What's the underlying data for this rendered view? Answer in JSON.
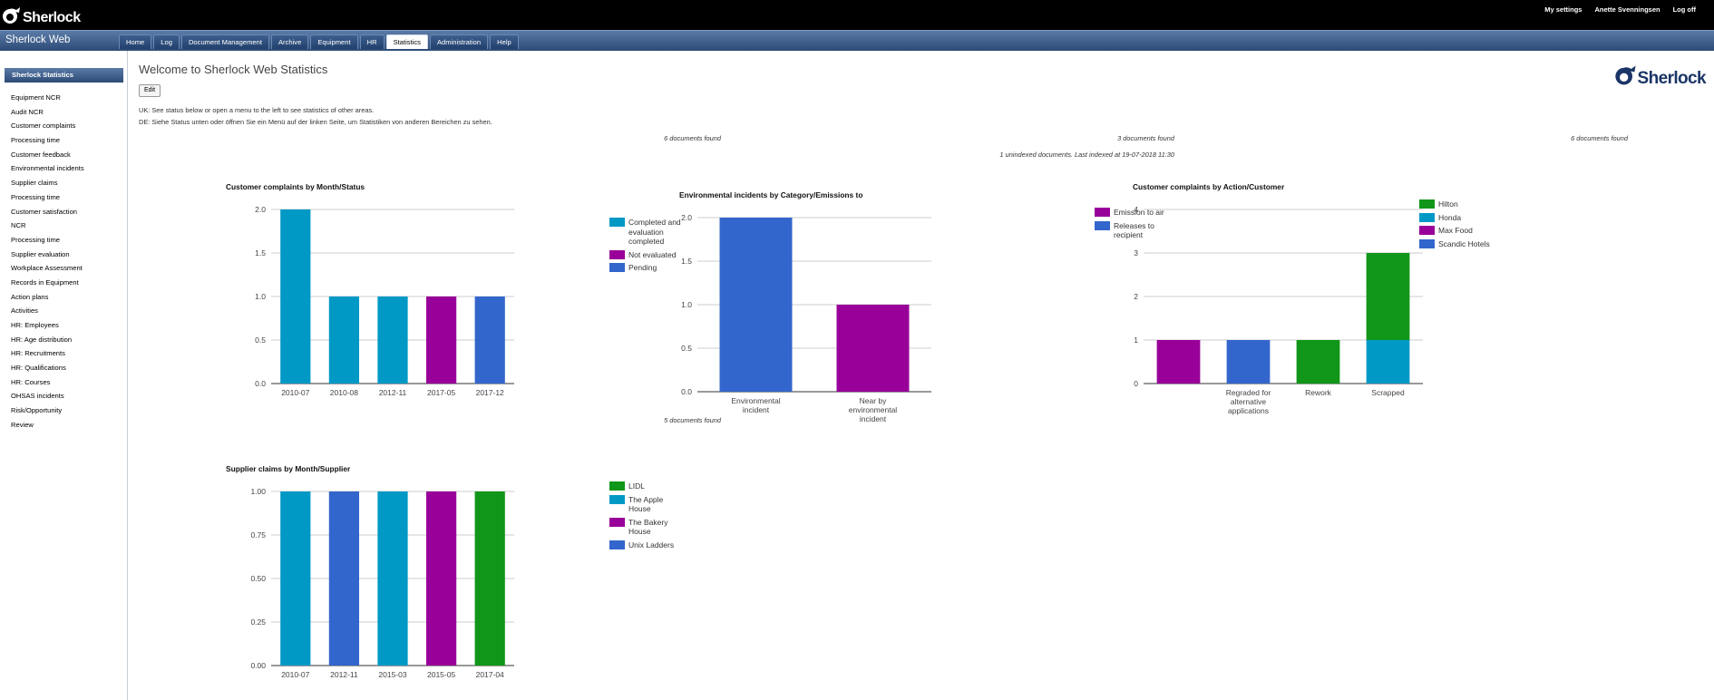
{
  "header": {
    "logo_text": "Sherlock",
    "links": [
      "My settings",
      "Anette Svenningsen",
      "Log off"
    ]
  },
  "nav": {
    "brand": "Sherlock Web",
    "tabs": [
      "Home",
      "Log",
      "Document Management",
      "Archive",
      "Equipment",
      "HR",
      "Statistics",
      "Administration",
      "Help"
    ],
    "active": "Statistics"
  },
  "sidebar": {
    "heading": "Sherlock Statistics",
    "items": [
      "Equipment NCR",
      "Audit NCR",
      "Customer complaints",
      "Processing time",
      "Customer feedback",
      "Environmental incidents",
      "Supplier claims",
      "Processing time",
      "Customer satisfaction",
      "NCR",
      "Processing time",
      "Supplier evaluation",
      "Workplace Assessment",
      "Records in Equipment",
      "Action plans",
      "Activities",
      "HR: Employees",
      "HR: Age distribution",
      "HR: Recruitments",
      "HR: Qualifications",
      "HR: Courses",
      "OHSAS incidents",
      "Risk/Opportunity",
      "Review"
    ]
  },
  "main": {
    "title": "Welcome to Sherlock Web Statistics",
    "edit_label": "Edit",
    "info_uk": "UK: See status below or open a menu to the left to see statistics of other areas.",
    "info_de": "DE: Siehe Status unten oder öffnen Sie ein Menü auf der linken Seite, um Statistiken von anderen Bereichen zu sehen.",
    "logo_text": "Sherlock",
    "found1": "6 documents found",
    "found2": "3 documents found",
    "found2b": "1 unindexed documents. Last indexed at 19-07-2018 11:30",
    "found3": "6 documents found",
    "found4": "5 documents found"
  },
  "colors": {
    "cyan": "#0099c6",
    "purple": "#990099",
    "blue": "#3366cc",
    "green": "#109618",
    "grid": "#cccccc"
  },
  "chart_data": [
    {
      "type": "bar",
      "title": "Customer complaints by Month/Status",
      "categories": [
        "2010-07",
        "2010-08",
        "2012-11",
        "2017-05",
        "2017-12"
      ],
      "series": [
        {
          "name": "Completed and evaluation completed",
          "color": "#0099c6",
          "values": [
            2,
            1,
            1,
            0,
            0
          ]
        },
        {
          "name": "Not evaluated",
          "color": "#990099",
          "values": [
            0,
            0,
            0,
            1,
            0
          ]
        },
        {
          "name": "Pending",
          "color": "#3366cc",
          "values": [
            0,
            0,
            0,
            0,
            1
          ]
        }
      ],
      "ylim": [
        0,
        2
      ],
      "yticks": [
        "0.0",
        "0.5",
        "1.0",
        "1.5",
        "2.0"
      ],
      "ytick_values": [
        0,
        0.5,
        1,
        1.5,
        2
      ],
      "stacked": true,
      "legend": "right"
    },
    {
      "type": "bar",
      "title": "Environmental incidents by Category/Emissions to",
      "categories": [
        "Environmental incident",
        "Near by environmental incident"
      ],
      "series": [
        {
          "name": "Emission to air",
          "color": "#990099",
          "values": [
            0,
            1
          ]
        },
        {
          "name": "Releases to recipient",
          "color": "#3366cc",
          "values": [
            2,
            0
          ]
        }
      ],
      "ylim": [
        0,
        2
      ],
      "yticks": [
        "0.0",
        "0.5",
        "1.0",
        "1.5",
        "2.0"
      ],
      "ytick_values": [
        0,
        0.5,
        1,
        1.5,
        2
      ],
      "stacked": true,
      "legend": "right"
    },
    {
      "type": "bar",
      "title": "Customer complaints by Action/Customer",
      "categories": [
        "",
        "Regraded for alternative applications",
        "Rework",
        "Scrapped"
      ],
      "series": [
        {
          "name": "Hilton",
          "color": "#109618",
          "values": [
            0,
            0,
            1,
            2
          ]
        },
        {
          "name": "Honda",
          "color": "#0099c6",
          "values": [
            0,
            0,
            0,
            1
          ]
        },
        {
          "name": "Max Food",
          "color": "#990099",
          "values": [
            1,
            0,
            0,
            0
          ]
        },
        {
          "name": "Scandic Hotels",
          "color": "#3366cc",
          "values": [
            0,
            1,
            0,
            0
          ]
        }
      ],
      "ylim": [
        0,
        4
      ],
      "yticks": [
        "0",
        "1",
        "2",
        "3",
        "4"
      ],
      "ytick_values": [
        0,
        1,
        2,
        3,
        4
      ],
      "stacked": true,
      "legend": "right"
    },
    {
      "type": "bar",
      "title": "Supplier claims by Month/Supplier",
      "categories": [
        "2010-07",
        "2012-11",
        "2015-03",
        "2015-05",
        "2017-04"
      ],
      "series": [
        {
          "name": "LIDL",
          "color": "#109618",
          "values": [
            0,
            0,
            0,
            0,
            1
          ]
        },
        {
          "name": "The Apple House",
          "color": "#0099c6",
          "values": [
            1,
            0,
            1,
            0,
            0
          ]
        },
        {
          "name": "The Bakery House",
          "color": "#990099",
          "values": [
            0,
            0,
            0,
            1,
            0
          ]
        },
        {
          "name": "Unix Ladders",
          "color": "#3366cc",
          "values": [
            0,
            1,
            0,
            0,
            0
          ]
        }
      ],
      "ylim": [
        0,
        1
      ],
      "yticks": [
        "0.00",
        "0.25",
        "0.50",
        "0.75",
        "1.00"
      ],
      "ytick_values": [
        0,
        0.25,
        0.5,
        0.75,
        1
      ],
      "stacked": true,
      "legend": "right"
    }
  ]
}
